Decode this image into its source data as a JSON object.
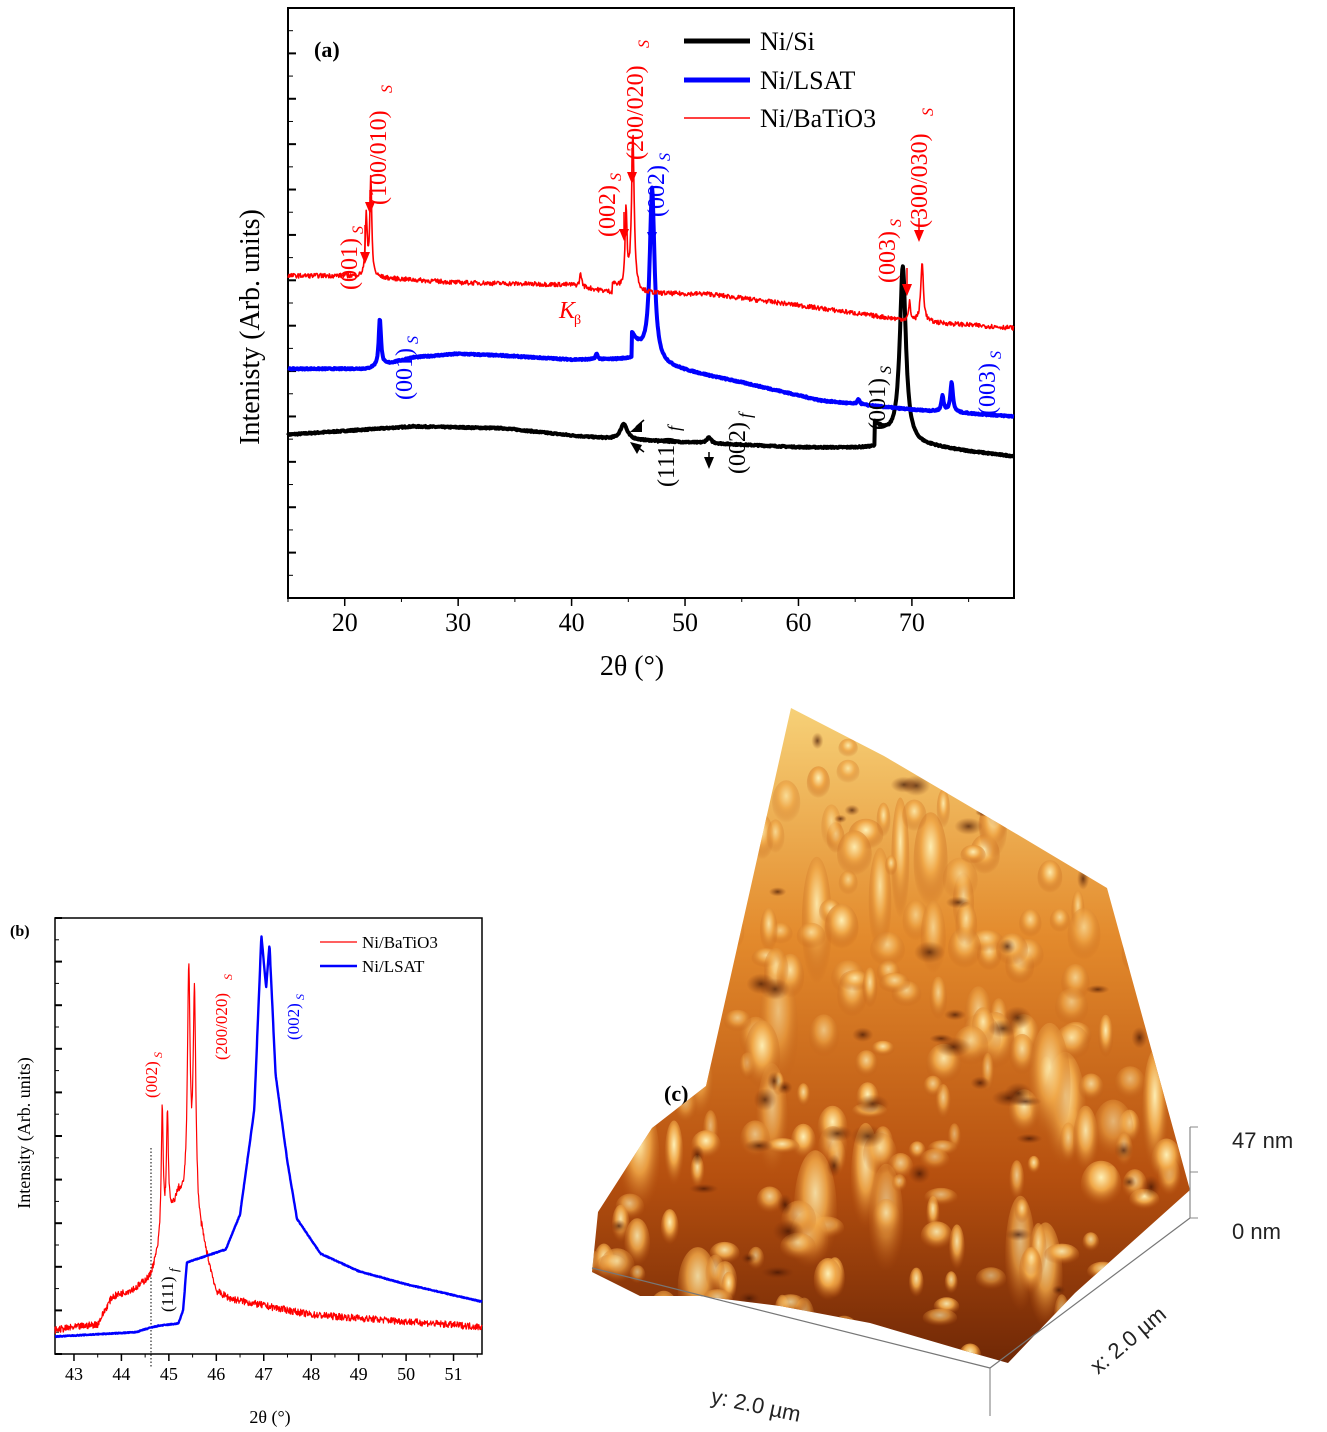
{
  "chart_data": [
    {
      "panel": "(a)",
      "type": "line",
      "xlabel": "2θ (°)",
      "ylabel": "Intenisty (Arb. units)",
      "xlim": [
        15,
        79
      ],
      "xticks": [
        20,
        30,
        40,
        50,
        60,
        70
      ],
      "ylim": [
        0,
        13
      ],
      "y_tick_labels": false,
      "legend": "top-right",
      "series": [
        {
          "name": "Ni/Si",
          "color": "#000000",
          "baseline": [
            [
              15,
              3.6
            ],
            [
              26,
              3.78
            ],
            [
              34,
              3.74
            ],
            [
              40,
              3.58
            ],
            [
              44,
              3.5
            ],
            [
              60,
              3.32
            ],
            [
              66,
              3.3
            ],
            [
              72,
              3.3
            ],
            [
              79,
              3.12
            ]
          ],
          "peaks": [
            {
              "x": 44.6,
              "h": 0.35,
              "w": 0.35
            },
            {
              "x": 52.1,
              "h": 0.12,
              "w": 0.25
            },
            {
              "x": 69.2,
              "h": 3.85,
              "w": 0.32
            }
          ],
          "steps": [
            {
              "x": 66.7,
              "h": 0.55,
              "tail": 2.0
            }
          ]
        },
        {
          "name": "Ni/LSAT",
          "color": "#0000ff",
          "baseline": [
            [
              15,
              5.05
            ],
            [
              22,
              5.05
            ],
            [
              26,
              5.3
            ],
            [
              30,
              5.38
            ],
            [
              34,
              5.34
            ],
            [
              40,
              5.25
            ],
            [
              45.3,
              5.25
            ],
            [
              55,
              4.75
            ],
            [
              62,
              4.35
            ],
            [
              70,
              4.15
            ],
            [
              79,
              4.0
            ]
          ],
          "peaks": [
            {
              "x": 23.1,
              "h": 1.05,
              "w": 0.12
            },
            {
              "x": 42.2,
              "h": 0.12,
              "w": 0.12
            },
            {
              "x": 47.1,
              "h": 3.75,
              "w": 0.25
            },
            {
              "x": 65.3,
              "h": 0.12,
              "w": 0.12
            },
            {
              "x": 72.7,
              "h": 0.35,
              "w": 0.12
            },
            {
              "x": 73.5,
              "h": 0.65,
              "w": 0.14
            }
          ],
          "steps": [
            {
              "x": 45.3,
              "h": 0.55,
              "tail": 1.2
            }
          ]
        },
        {
          "name": "Ni/BaTiO3",
          "color": "#ff0000",
          "baseline": [
            [
              15,
              7.1
            ],
            [
              20,
              7.1
            ],
            [
              30,
              6.95
            ],
            [
              40,
              6.9
            ],
            [
              44,
              6.7
            ],
            [
              52,
              6.7
            ],
            [
              60,
              6.45
            ],
            [
              70,
              6.1
            ],
            [
              79,
              5.95
            ]
          ],
          "peaks": [
            {
              "x": 21.9,
              "h": 1.35,
              "w": 0.1
            },
            {
              "x": 22.3,
              "h": 2.15,
              "w": 0.1
            },
            {
              "x": 40.8,
              "h": 0.3,
              "w": 0.1
            },
            {
              "x": 44.8,
              "h": 1.75,
              "w": 0.1
            },
            {
              "x": 45.4,
              "h": 3.45,
              "w": 0.14
            },
            {
              "x": 69.8,
              "h": 0.4,
              "w": 0.1
            },
            {
              "x": 70.9,
              "h": 1.3,
              "w": 0.14
            }
          ],
          "steps": [
            {
              "x": 43.6,
              "h": 0.22,
              "tail": 1.3
            }
          ]
        }
      ],
      "annotations": [
        {
          "text": "(001)",
          "sub": "S",
          "color": "#ff0000"
        },
        {
          "text": "(100/010)",
          "sub": "S",
          "color": "#ff0000"
        },
        {
          "text": "K",
          "sub": "β",
          "color": "#ff0000"
        },
        {
          "text": "(002)",
          "sub": "S",
          "color": "#ff0000"
        },
        {
          "text": "(200/020)",
          "sub": "S",
          "color": "#ff0000"
        },
        {
          "text": "(002)",
          "sub": "S",
          "color": "#0000ff"
        },
        {
          "text": "(003)",
          "sub": "S",
          "color": "#ff0000"
        },
        {
          "text": "(300/030)",
          "sub": "S",
          "color": "#ff0000"
        },
        {
          "text": "(001)",
          "sub": "S",
          "color": "#0000ff"
        },
        {
          "text": "(111)",
          "sub": "f",
          "color": "#000000"
        },
        {
          "text": "(002)",
          "sub": "f",
          "color": "#000000"
        },
        {
          "text": "(001)",
          "sub": "S",
          "color": "#000000"
        },
        {
          "text": "(003)",
          "sub": "S",
          "color": "#0000ff"
        }
      ]
    },
    {
      "panel": "(b)",
      "type": "line",
      "xlabel": "2θ (°)",
      "ylabel": "Intensity (Arb. units)",
      "xlim": [
        42.6,
        51.6
      ],
      "xticks": [
        43,
        44,
        45,
        46,
        47,
        48,
        49,
        50,
        51
      ],
      "ylim": [
        0,
        10
      ],
      "y_tick_labels": false,
      "legend": "top-right",
      "reference_line_x": 44.7,
      "series": [
        {
          "name": "Ni/BaTiO3",
          "color": "#ff0000",
          "baseline": [
            [
              42.6,
              0.55
            ],
            [
              43.5,
              0.68
            ],
            [
              43.8,
              1.3
            ],
            [
              44.3,
              1.5
            ],
            [
              44.6,
              1.75
            ],
            [
              45.2,
              3.6
            ],
            [
              45.7,
              2.6
            ],
            [
              46.0,
              1.4
            ],
            [
              46.3,
              1.25
            ],
            [
              48,
              0.9
            ],
            [
              51.6,
              0.62
            ]
          ],
          "peaks": [
            {
              "x": 44.86,
              "h": 3.0,
              "w": 0.025
            },
            {
              "x": 44.97,
              "h": 2.5,
              "w": 0.025
            },
            {
              "x": 45.42,
              "h": 5.4,
              "w": 0.035
            },
            {
              "x": 45.54,
              "h": 5.1,
              "w": 0.035
            }
          ]
        },
        {
          "name": "Ni/LSAT",
          "color": "#0000ff",
          "baseline": [
            [
              42.6,
              0.4
            ],
            [
              44.3,
              0.5
            ],
            [
              44.6,
              0.6
            ],
            [
              44.8,
              0.65
            ],
            [
              45.2,
              0.7
            ],
            [
              45.3,
              1.0
            ],
            [
              45.38,
              2.1
            ],
            [
              46.2,
              2.4
            ],
            [
              46.5,
              3.2
            ],
            [
              46.8,
              5.6
            ],
            [
              46.95,
              9.6
            ],
            [
              47.05,
              8.4
            ],
            [
              47.12,
              9.4
            ],
            [
              47.25,
              6.4
            ],
            [
              47.5,
              4.4
            ],
            [
              47.7,
              3.1
            ],
            [
              48.2,
              2.3
            ],
            [
              49,
              1.9
            ],
            [
              50,
              1.6
            ],
            [
              51.6,
              1.2
            ]
          ],
          "peaks": []
        }
      ],
      "annotations": [
        {
          "text": "(002)",
          "sub": "S",
          "color": "#ff0000"
        },
        {
          "text": "(200/020)",
          "sub": "S",
          "color": "#ff0000"
        },
        {
          "text": "(002)",
          "sub": "S",
          "color": "#0000ff"
        },
        {
          "text": "(111)",
          "sub": "f",
          "color": "#000000"
        }
      ]
    }
  ],
  "panel_c": {
    "label": "(c)",
    "type": "afm-3d-surface",
    "z_max_label": "47 nm",
    "z_min_label": "0 nm",
    "x_axis_label": "x: 2.0 µm",
    "y_axis_label": "y: 2.0 µm"
  }
}
